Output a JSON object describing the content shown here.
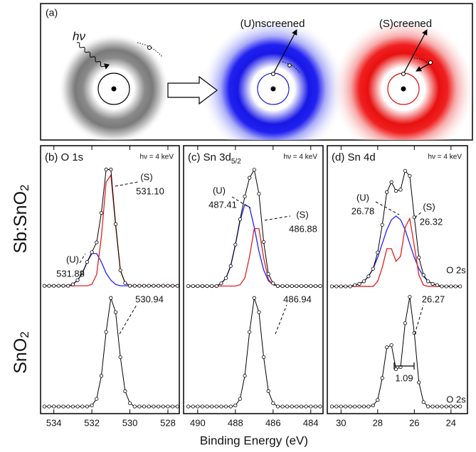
{
  "panel_a": {
    "label": "(a)",
    "photon": "hν",
    "unscreened": "(U)nscreened",
    "screened": "(S)creened"
  },
  "x_label": "Binding Energy (eV)",
  "row_labels": [
    {
      "text": "Sb:SnO",
      "sub": "2"
    },
    {
      "text": "SnO",
      "sub": "2"
    }
  ],
  "chart_data": [
    {
      "type": "line",
      "title": "(b) O 1s",
      "note": "hν = 4 keV",
      "x": [
        534.5,
        534.25,
        534,
        533.75,
        533.5,
        533.25,
        533,
        532.75,
        532.5,
        532.25,
        532,
        531.75,
        531.5,
        531.25,
        531,
        530.75,
        530.5,
        530.25,
        530,
        529.75,
        529.5,
        529.25,
        529,
        528.75,
        528.5,
        528.25,
        528,
        527.75,
        527.5
      ],
      "xlim": [
        534.7,
        527.4
      ],
      "ylim": [
        -0.04,
        1.0
      ],
      "xticks": [
        534,
        532,
        530,
        528
      ],
      "series": [
        {
          "color": "#2020ff",
          "markers": false,
          "values": [
            0,
            0,
            0,
            0,
            0,
            0,
            0.01,
            0.04,
            0.09,
            0.17,
            0.23,
            0.23,
            0.17,
            0.09,
            0.04,
            0.01,
            0,
            0,
            0,
            0,
            0,
            0,
            0,
            0,
            0,
            0,
            0,
            0,
            0
          ]
        },
        {
          "color": "#e02020",
          "markers": false,
          "values": [
            0,
            0,
            0,
            0,
            0,
            0,
            0,
            0,
            0,
            0,
            0.01,
            0.08,
            0.35,
            0.74,
            0.79,
            0.43,
            0.11,
            0.02,
            0,
            0,
            0,
            0,
            0,
            0,
            0,
            0,
            0,
            0,
            0
          ]
        },
        {
          "color": "#000000",
          "markers": true,
          "values": [
            0,
            0,
            0,
            0,
            0,
            0,
            0.01,
            0.04,
            0.09,
            0.17,
            0.24,
            0.31,
            0.52,
            0.83,
            0.83,
            0.44,
            0.11,
            0.02,
            0,
            0,
            0,
            0,
            0,
            0,
            0,
            0,
            0,
            0,
            0
          ]
        }
      ],
      "annotations": [
        "(S)",
        "531.10",
        "(U)",
        "531.88"
      ]
    },
    {
      "type": "line",
      "x": [
        534.5,
        534.25,
        534,
        533.75,
        533.5,
        533.25,
        533,
        532.75,
        532.5,
        532.25,
        532,
        531.75,
        531.5,
        531.25,
        531,
        530.75,
        530.5,
        530.25,
        530,
        529.75,
        529.5,
        529.25,
        529,
        528.75,
        528.5,
        528.25,
        528,
        527.75,
        527.5
      ],
      "xlim": [
        534.7,
        527.4
      ],
      "ylim": [
        -0.065,
        1.05
      ],
      "xticks": [
        534,
        532,
        530,
        528
      ],
      "series": [
        {
          "color": "#000000",
          "markers": true,
          "values": [
            0,
            0,
            0,
            0,
            0,
            0,
            0,
            0,
            0,
            0,
            0.01,
            0.07,
            0.28,
            0.68,
            0.99,
            0.86,
            0.45,
            0.14,
            0.03,
            0,
            0,
            0,
            0,
            0,
            0,
            0,
            0,
            0,
            0
          ]
        }
      ],
      "annotations": [
        "530.94"
      ]
    },
    {
      "type": "line",
      "title": "(c) Sn 3d",
      "title_subscript": "5/2",
      "note": "hν = 4 keV",
      "x": [
        490.5,
        490.25,
        490,
        489.75,
        489.5,
        489.25,
        489,
        488.75,
        488.5,
        488.25,
        488,
        487.75,
        487.5,
        487.25,
        487,
        486.75,
        486.5,
        486.25,
        486,
        485.75,
        485.5,
        485.25,
        485,
        484.75,
        484.5,
        484.25,
        484,
        483.75,
        483.5
      ],
      "xlim": [
        490.75,
        483.35
      ],
      "ylim": [
        -0.04,
        1.05
      ],
      "xticks": [
        490,
        488,
        486,
        484
      ],
      "series": [
        {
          "color": "#2020ff",
          "markers": false,
          "values": [
            0,
            0,
            0,
            0,
            0,
            0,
            0,
            0.02,
            0.06,
            0.15,
            0.31,
            0.49,
            0.61,
            0.59,
            0.44,
            0.26,
            0.12,
            0.04,
            0.01,
            0,
            0,
            0,
            0,
            0,
            0,
            0,
            0,
            0,
            0
          ]
        },
        {
          "color": "#e02020",
          "markers": false,
          "values": [
            0,
            0,
            0,
            0,
            0,
            0,
            0,
            0,
            0,
            0,
            0,
            0.01,
            0.06,
            0.22,
            0.43,
            0.43,
            0.21,
            0.05,
            0.01,
            0,
            0,
            0,
            0,
            0,
            0,
            0,
            0,
            0,
            0
          ]
        },
        {
          "color": "#000000",
          "markers": true,
          "values": [
            0,
            0,
            0,
            0,
            0,
            0,
            0,
            0.02,
            0.06,
            0.15,
            0.31,
            0.5,
            0.67,
            0.81,
            0.87,
            0.69,
            0.33,
            0.09,
            0.02,
            0,
            0,
            0,
            0,
            0,
            0,
            0,
            0,
            0,
            0
          ]
        }
      ],
      "annotations": [
        "(U)",
        "487.41",
        "(S)",
        "486.88"
      ]
    },
    {
      "type": "line",
      "x": [
        490.5,
        490.25,
        490,
        489.75,
        489.5,
        489.25,
        489,
        488.75,
        488.5,
        488.25,
        488,
        487.75,
        487.5,
        487.25,
        487,
        486.75,
        486.5,
        486.25,
        486,
        485.75,
        485.5,
        485.25,
        485,
        484.75,
        484.5,
        484.25,
        484,
        483.75,
        483.5
      ],
      "xlim": [
        490.75,
        483.35
      ],
      "ylim": [
        -0.065,
        1.05
      ],
      "xticks": [
        490,
        488,
        486,
        484
      ],
      "series": [
        {
          "color": "#000000",
          "markers": true,
          "values": [
            0,
            0,
            0,
            0,
            0,
            0,
            0,
            0,
            0,
            0,
            0.01,
            0.07,
            0.28,
            0.68,
            0.99,
            0.86,
            0.45,
            0.14,
            0.03,
            0,
            0,
            0,
            0,
            0,
            0,
            0,
            0,
            0,
            0
          ]
        }
      ],
      "annotations": [
        "486.94"
      ]
    },
    {
      "type": "line",
      "title": "(d) Sn 4d",
      "note": "hν = 4 keV",
      "x": [
        30.5,
        30.25,
        30,
        29.75,
        29.5,
        29.25,
        29,
        28.75,
        28.5,
        28.25,
        28,
        27.75,
        27.5,
        27.25,
        27,
        26.75,
        26.5,
        26.25,
        26,
        25.75,
        25.5,
        25.25,
        25,
        24.75,
        24.5,
        24.25,
        24,
        23.75,
        23.5
      ],
      "xlim": [
        30.75,
        23.1
      ],
      "ylim": [
        -0.04,
        1.12
      ],
      "xticks": [
        30,
        28,
        26,
        24
      ],
      "series": [
        {
          "color": "#2020ff",
          "markers": false,
          "values": [
            0,
            0,
            0,
            0,
            0,
            0.01,
            0.02,
            0.04,
            0.08,
            0.14,
            0.23,
            0.34,
            0.45,
            0.53,
            0.56,
            0.53,
            0.45,
            0.34,
            0.23,
            0.14,
            0.08,
            0.04,
            0.02,
            0.01,
            0,
            0,
            0,
            0,
            0
          ]
        },
        {
          "color": "#e02020",
          "markers": false,
          "values": [
            0,
            0,
            0,
            0,
            0,
            0,
            0,
            0,
            0,
            0,
            0.04,
            0.15,
            0.3,
            0.3,
            0.2,
            0.24,
            0.47,
            0.54,
            0.32,
            0.09,
            0.01,
            0,
            0,
            0,
            0,
            0,
            0,
            0,
            0
          ]
        },
        {
          "color": "#000000",
          "markers": true,
          "values": [
            0,
            0,
            0,
            0,
            0,
            0.01,
            0.02,
            0.04,
            0.08,
            0.14,
            0.27,
            0.49,
            0.75,
            0.83,
            0.76,
            0.77,
            0.92,
            0.88,
            0.55,
            0.23,
            0.09,
            0.04,
            0.02,
            0.01,
            0,
            0,
            0,
            0,
            0
          ]
        }
      ],
      "annotations": [
        "(U)",
        "26.78",
        "(S)",
        "26.32",
        "O 2s"
      ]
    },
    {
      "type": "line",
      "x": [
        30.5,
        30.25,
        30,
        29.75,
        29.5,
        29.25,
        29,
        28.75,
        28.5,
        28.25,
        28,
        27.75,
        27.5,
        27.25,
        27,
        26.75,
        26.5,
        26.25,
        26,
        25.75,
        25.5,
        25.25,
        25,
        24.75,
        24.5,
        24.25,
        24,
        23.75,
        23.5
      ],
      "xlim": [
        30.75,
        23.1
      ],
      "ylim": [
        -0.065,
        1.05
      ],
      "xticks": [
        30,
        28,
        26,
        24
      ],
      "series": [
        {
          "color": "#000000",
          "markers": true,
          "values": [
            0,
            0,
            0,
            0,
            0,
            0,
            0,
            0,
            0,
            0.01,
            0.06,
            0.26,
            0.54,
            0.56,
            0.34,
            0.36,
            0.76,
            1.0,
            0.67,
            0.22,
            0.04,
            0,
            0,
            0,
            0,
            0,
            0,
            0,
            0
          ]
        }
      ],
      "annotations": [
        "26.27",
        "1.09",
        "O 2s"
      ]
    }
  ]
}
